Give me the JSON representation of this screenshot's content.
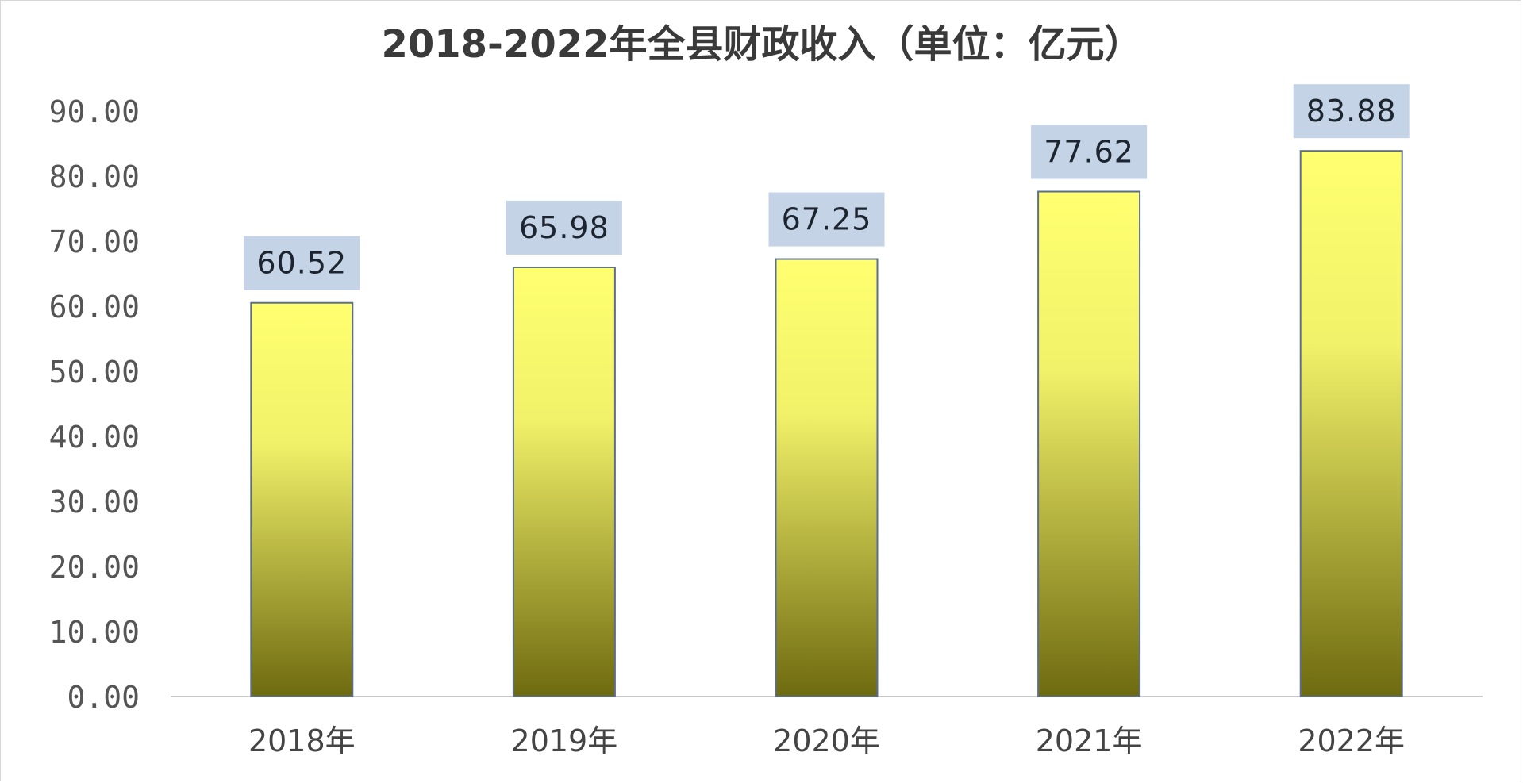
{
  "chart_data": {
    "type": "bar",
    "title": "2018-2022年全县财政收入（单位：亿元）",
    "categories": [
      "2018年",
      "2019年",
      "2020年",
      "2021年",
      "2022年"
    ],
    "values": [
      60.52,
      65.98,
      67.25,
      77.62,
      83.88
    ],
    "data_labels": [
      "60.52",
      "65.98",
      "67.25",
      "77.62",
      "83.88"
    ],
    "y_ticks": [
      "0.00",
      "10.00",
      "20.00",
      "30.00",
      "40.00",
      "50.00",
      "60.00",
      "70.00",
      "80.00",
      "90.00"
    ],
    "ylim": [
      0,
      90
    ],
    "grid": false,
    "legend": "none",
    "colors": {
      "bar_top": "#ffff70",
      "bar_mid": "#f2f26a",
      "bar_bottom": "#6e6a10",
      "bar_border": "#5b6f8c",
      "label_bg": "#c5d3e6",
      "axis": "#c8c8c8"
    }
  }
}
